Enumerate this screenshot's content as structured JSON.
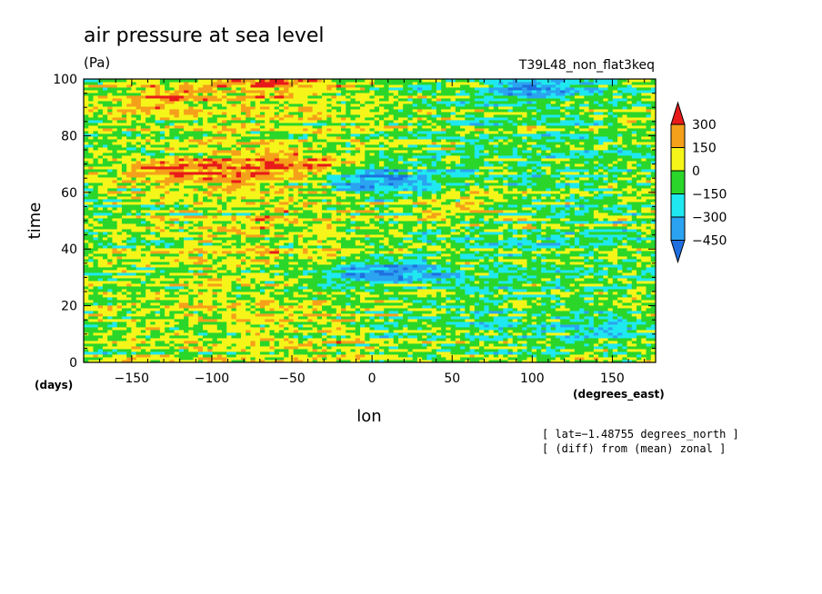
{
  "chart_data": {
    "type": "heatmap",
    "title": "air pressure at sea level",
    "units": "(Pa)",
    "dataset": "T39L48_non_flat3keq",
    "xlabel": "lon",
    "ylabel": "time",
    "x_units": "(degrees_east)",
    "y_units": "(days)",
    "xlim": [
      -180,
      177
    ],
    "ylim": [
      0,
      100
    ],
    "x_ticks": [
      -150,
      -100,
      -50,
      0,
      50,
      100,
      150
    ],
    "y_ticks": [
      0,
      20,
      40,
      60,
      80,
      100
    ],
    "x_tick_labels": [
      "−150",
      "−100",
      "−50",
      "0",
      "50",
      "100",
      "150"
    ],
    "y_tick_labels": [
      "0",
      "20",
      "40",
      "60",
      "80",
      "100"
    ],
    "colorbar": {
      "levels": [
        -450,
        -300,
        -150,
        0,
        150,
        300
      ],
      "level_labels": [
        "−450",
        "−300",
        "−150",
        "0",
        "150",
        "300"
      ],
      "colors": [
        "#1f6fe0",
        "#2ba3f0",
        "#1fe8f0",
        "#2ad62a",
        "#f5f51a",
        "#f5a01a",
        "#e81a1a"
      ],
      "extend": "both"
    },
    "annotations": [
      "[ lat=−1.48755 degrees_north ]",
      "[ (diff) from (mean) zonal ]"
    ],
    "features": [
      {
        "x": -115,
        "y": 68,
        "value": 250
      },
      {
        "x": -55,
        "y": 70,
        "value": 280
      },
      {
        "x": -60,
        "y": 99,
        "value": 260
      },
      {
        "x": -130,
        "y": 93,
        "value": 180
      },
      {
        "x": 5,
        "y": 64,
        "value": -420
      },
      {
        "x": 5,
        "y": 32,
        "value": -400
      },
      {
        "x": 60,
        "y": 55,
        "value": 160
      },
      {
        "x": 100,
        "y": 97,
        "value": -250
      },
      {
        "x": 150,
        "y": 12,
        "value": -200
      }
    ]
  }
}
